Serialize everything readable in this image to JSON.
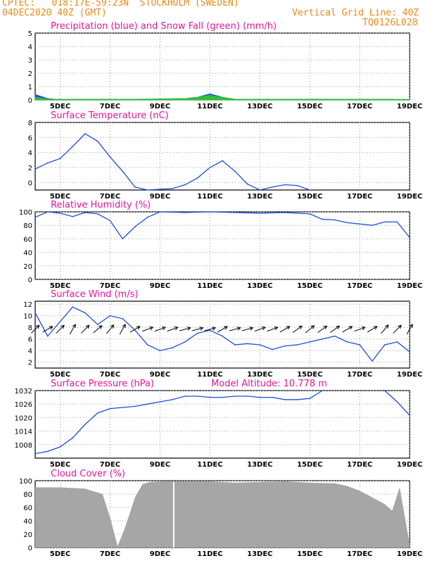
{
  "header": {
    "left1": "CPTEC:   018:17E-59:23N  STOCKHOLM (SWEDEN)",
    "left2": "04DEC2020 40Z (GMT)",
    "right1": "Vertical Grid Line: 40Z",
    "right2": "TQ0126L028"
  },
  "chart_data": [
    {
      "type": "area",
      "title": "Precipitation (blue) and Snow Fall (green) (mm/h)",
      "ylim": [
        0,
        5
      ],
      "yticks": [
        "0",
        "1",
        "2",
        "3",
        "4",
        "5"
      ],
      "x": [
        "04DEC",
        "04.5",
        "05DEC",
        "06DEC",
        "07DEC",
        "08DEC",
        "09DEC",
        "10DEC",
        "10.5",
        "11DEC",
        "11.5",
        "12DEC",
        "13DEC",
        "14DEC",
        "15DEC",
        "16DEC",
        "17DEC",
        "18DEC",
        "19DEC"
      ],
      "series": [
        {
          "name": "Precipitation",
          "color": "#1f4fd6",
          "values": [
            0.4,
            0.1,
            0.02,
            0.0,
            0.0,
            0.0,
            0.05,
            0.1,
            0.2,
            0.45,
            0.2,
            0.05,
            0.02,
            0.02,
            0.04,
            0.02,
            0.0,
            0.02,
            0.0
          ]
        },
        {
          "name": "Snow Fall",
          "color": "#2fbf3a",
          "values": [
            0.2,
            0.05,
            0.05,
            0.05,
            0.05,
            0.05,
            0.08,
            0.1,
            0.2,
            0.35,
            0.18,
            0.06,
            0.05,
            0.05,
            0.06,
            0.05,
            0.05,
            0.05,
            0.04
          ]
        }
      ]
    },
    {
      "type": "line",
      "title": "Surface Temperature (nC)",
      "ylim": [
        -1,
        8
      ],
      "yticks": [
        "0",
        "2",
        "4",
        "6",
        "8"
      ],
      "x": [
        "04DEC",
        "04.5",
        "05DEC",
        "05.5",
        "06DEC",
        "06.5",
        "07DEC",
        "07.5",
        "08DEC",
        "08.5",
        "09DEC",
        "09.5",
        "10DEC",
        "10.5",
        "11DEC",
        "11.5",
        "12DEC",
        "12.5",
        "13DEC",
        "13.5",
        "14DEC",
        "14.5",
        "15DEC"
      ],
      "values": [
        1.8,
        2.6,
        3.2,
        4.8,
        6.5,
        5.5,
        3.4,
        1.5,
        -0.6,
        -1.0,
        -0.9,
        -0.8,
        -0.3,
        0.6,
        2.0,
        2.9,
        1.5,
        -0.2,
        -1.0,
        -0.6,
        -0.3,
        -0.4,
        -1.0
      ]
    },
    {
      "type": "line",
      "title": "Relative Humidity (%)",
      "ylim": [
        0,
        100
      ],
      "yticks": [
        "0",
        "20",
        "40",
        "60",
        "80",
        "100"
      ],
      "x": [
        "04DEC",
        "04.5",
        "05DEC",
        "05.5",
        "06DEC",
        "06.5",
        "07DEC",
        "07.5",
        "08DEC",
        "08.5",
        "09DEC",
        "10DEC",
        "11DEC",
        "12DEC",
        "13DEC",
        "14DEC",
        "15DEC",
        "15.5",
        "16DEC",
        "16.5",
        "17DEC",
        "17.5",
        "18DEC",
        "18.5",
        "19DEC"
      ],
      "values": [
        92,
        100,
        98,
        93,
        99,
        97,
        87,
        60,
        78,
        92,
        100,
        99,
        100,
        99,
        98,
        99,
        97,
        89,
        88,
        84,
        82,
        80,
        85,
        85,
        62
      ]
    },
    {
      "type": "line",
      "title": "Surface Wind (m/s)",
      "ylim": [
        1,
        12.5
      ],
      "yticks": [
        "2",
        "4",
        "6",
        "8",
        "10",
        "12"
      ],
      "x": [
        "04DEC",
        "04.5",
        "05DEC",
        "05.5",
        "06DEC",
        "06.5",
        "07DEC",
        "07.5",
        "08DEC",
        "08.5",
        "09DEC",
        "09.5",
        "10DEC",
        "10.5",
        "11DEC",
        "11.5",
        "12DEC",
        "12.5",
        "13DEC",
        "13.5",
        "14DEC",
        "14.5",
        "15DEC",
        "15.5",
        "16DEC",
        "16.5",
        "17DEC",
        "17.5",
        "18DEC",
        "18.5",
        "19DEC"
      ],
      "values": [
        10.5,
        6.5,
        9.0,
        11.5,
        10.5,
        8.5,
        10.0,
        9.5,
        7.5,
        5.0,
        4.0,
        4.5,
        5.5,
        7.0,
        7.5,
        6.5,
        5.0,
        5.2,
        5.0,
        4.2,
        4.8,
        5.0,
        5.5,
        6.0,
        6.5,
        5.5,
        5.0,
        2.2,
        5.0,
        5.5,
        3.8
      ],
      "arrows_deg": [
        45,
        30,
        45,
        60,
        45,
        40,
        50,
        60,
        30,
        20,
        20,
        20,
        15,
        15,
        15,
        30,
        15,
        15,
        20,
        20,
        30,
        35,
        40,
        35,
        35,
        30,
        20,
        30,
        50,
        45,
        60
      ]
    },
    {
      "type": "line",
      "title": "Surface Pressure (hPa)",
      "annotation": "Model Altitude: 10.778 m",
      "ylim": [
        1002,
        1032
      ],
      "yticks": [
        "1008",
        "1014",
        "1020",
        "1026",
        "1032"
      ],
      "x": [
        "04DEC",
        "04.5",
        "05DEC",
        "05.5",
        "06DEC",
        "06.5",
        "07DEC",
        "07.5",
        "08DEC",
        "08.5",
        "09DEC",
        "09.5",
        "10DEC",
        "10.5",
        "11DEC",
        "11.5",
        "12DEC",
        "12.5",
        "13DEC",
        "13.5",
        "14DEC",
        "14.5",
        "15DEC",
        "15.5",
        "18.0",
        "18.5",
        "19DEC"
      ],
      "values": [
        1004,
        1005,
        1007,
        1011,
        1017,
        1022,
        1024,
        1024.5,
        1025,
        1026,
        1027,
        1028,
        1029.5,
        1029.5,
        1029,
        1029,
        1029.5,
        1029.5,
        1029,
        1029,
        1028,
        1028,
        1028.5,
        1032,
        1032,
        1027,
        1021
      ],
      "gap_after_index": 23
    },
    {
      "type": "area",
      "title": "Cloud Cover (%)",
      "ylim": [
        0,
        100
      ],
      "yticks": [
        "0",
        "20",
        "40",
        "60",
        "80",
        "100"
      ],
      "x": [
        "04DEC",
        "05DEC",
        "06DEC",
        "06.7",
        "07DEC",
        "07.3",
        "07.6",
        "08DEC",
        "08.3",
        "08.6",
        "09DEC",
        "10DEC",
        "11DEC",
        "12DEC",
        "13DEC",
        "14DEC",
        "15DEC",
        "16DEC",
        "16.5",
        "17DEC",
        "17.5",
        "18DEC",
        "18.3",
        "18.6",
        "19DEC"
      ],
      "values": [
        90,
        90,
        88,
        80,
        45,
        2,
        30,
        75,
        95,
        98,
        99,
        99,
        99,
        97,
        98,
        99,
        97,
        96,
        92,
        85,
        75,
        65,
        55,
        90,
        5
      ]
    }
  ],
  "x_axis_labels": [
    "5DEC",
    "7DEC",
    "9DEC",
    "11DEC",
    "13DEC",
    "15DEC",
    "17DEC",
    "19DEC"
  ],
  "x_axis_days": [
    5,
    7,
    9,
    11,
    13,
    15,
    17,
    19
  ],
  "x_domain": [
    4.0,
    19.0
  ]
}
